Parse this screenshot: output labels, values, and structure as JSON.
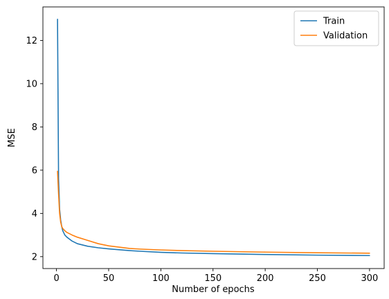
{
  "chart_data": {
    "type": "line",
    "xlabel": "Number of epochs",
    "ylabel": "MSE",
    "xlim": [
      -13,
      314
    ],
    "ylim": [
      1.45,
      13.55
    ],
    "xticks": [
      0,
      50,
      100,
      150,
      200,
      250,
      300
    ],
    "yticks": [
      2,
      4,
      6,
      8,
      10,
      12
    ],
    "legend_position": "top-right",
    "grid": false,
    "series": [
      {
        "name": "Train",
        "color": "#1f77b4",
        "x": [
          1,
          2,
          3,
          4,
          5,
          6,
          8,
          10,
          15,
          20,
          30,
          40,
          50,
          60,
          70,
          80,
          100,
          120,
          150,
          200,
          250,
          300
        ],
        "values": [
          12.98,
          5.6,
          4.2,
          3.7,
          3.4,
          3.2,
          3.0,
          2.9,
          2.72,
          2.6,
          2.48,
          2.41,
          2.36,
          2.32,
          2.28,
          2.25,
          2.2,
          2.17,
          2.14,
          2.1,
          2.07,
          2.05
        ]
      },
      {
        "name": "Validation",
        "color": "#ff7f0e",
        "x": [
          1,
          2,
          3,
          4,
          5,
          6,
          8,
          10,
          15,
          20,
          30,
          40,
          50,
          60,
          70,
          80,
          100,
          120,
          150,
          200,
          250,
          300
        ],
        "values": [
          5.95,
          4.9,
          4.0,
          3.6,
          3.4,
          3.3,
          3.2,
          3.12,
          3.0,
          2.9,
          2.75,
          2.6,
          2.5,
          2.44,
          2.38,
          2.35,
          2.31,
          2.28,
          2.25,
          2.21,
          2.18,
          2.16
        ]
      }
    ]
  }
}
